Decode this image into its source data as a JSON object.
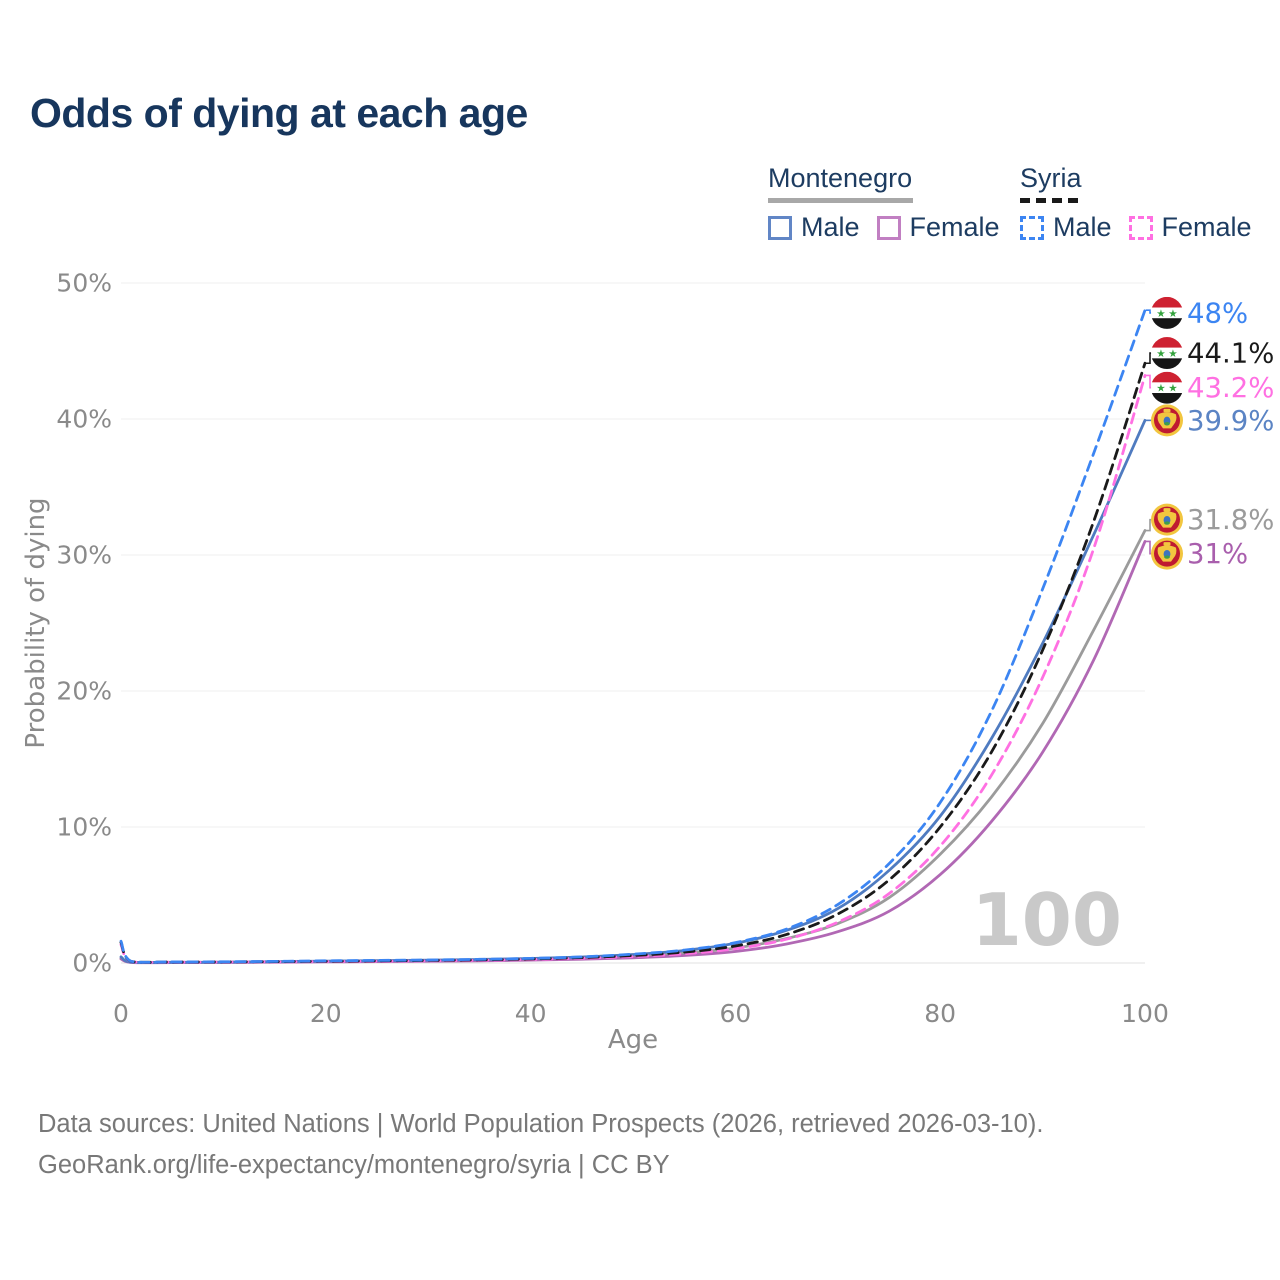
{
  "title": {
    "text": "Odds of dying at each age",
    "color": "#17365d"
  },
  "legend": {
    "position": "top-right",
    "groups": [
      {
        "name": "Montenegro",
        "underline_style": "solid",
        "underline_color": "#a8a8a8",
        "items": [
          {
            "label": "Male",
            "color": "#4f7bc0",
            "dashed": false
          },
          {
            "label": "Female",
            "color": "#b168b4",
            "dashed": false
          }
        ]
      },
      {
        "name": "Syria",
        "underline_style": "dashed",
        "underline_color": "#1a1a1a",
        "items": [
          {
            "label": "Male",
            "color": "#3c85f2",
            "dashed": true
          },
          {
            "label": "Female",
            "color": "#ff70e2",
            "dashed": true
          }
        ]
      }
    ]
  },
  "chart_data": {
    "type": "line",
    "title": "Odds of dying at each age",
    "xlabel": "Age",
    "ylabel": "Probability of dying",
    "xlim": [
      0,
      100
    ],
    "ylim": [
      0,
      50
    ],
    "x_ticks": [
      0,
      20,
      40,
      60,
      80,
      100
    ],
    "y_tick_labels": [
      "0%",
      "10%",
      "20%",
      "30%",
      "40%",
      "50%"
    ],
    "grid": "horizontal",
    "grid_color": "#efefef",
    "axis_text_color": "#8a8a8a",
    "legend_position": "top-right",
    "hover_age_label": "100",
    "x": [
      0,
      1,
      5,
      10,
      15,
      20,
      25,
      30,
      35,
      40,
      45,
      50,
      55,
      60,
      65,
      70,
      75,
      80,
      85,
      90,
      95,
      100
    ],
    "series": [
      {
        "id": "montenegro-total",
        "name": "Montenegro (both sexes)",
        "country": "Montenegro",
        "sex": "both",
        "color": "#9b9b9b",
        "dashed": false,
        "flag": "montenegro",
        "end_label": "31.8%",
        "label_color": "#9b9b9b",
        "label_pct": 32.6,
        "values": [
          0.35,
          0.05,
          0.04,
          0.05,
          0.08,
          0.11,
          0.14,
          0.17,
          0.21,
          0.27,
          0.36,
          0.5,
          0.72,
          1.1,
          1.8,
          2.9,
          4.8,
          8.0,
          12.2,
          17.6,
          24.5,
          31.8
        ]
      },
      {
        "id": "montenegro-female",
        "name": "Montenegro Female",
        "country": "Montenegro",
        "sex": "female",
        "color": "#b168b4",
        "dashed": false,
        "flag": "montenegro",
        "end_label": "31%",
        "label_color": "#a95fad",
        "label_pct": 30.1,
        "values": [
          0.3,
          0.04,
          0.03,
          0.04,
          0.06,
          0.08,
          0.1,
          0.13,
          0.16,
          0.21,
          0.28,
          0.38,
          0.55,
          0.85,
          1.4,
          2.3,
          3.8,
          6.5,
          10.4,
          15.5,
          22.3,
          31.0
        ]
      },
      {
        "id": "montenegro-male",
        "name": "Montenegro Male",
        "country": "Montenegro",
        "sex": "male",
        "color": "#4f7bc0",
        "dashed": false,
        "flag": "montenegro",
        "end_label": "39.9%",
        "label_color": "#5b84c4",
        "label_pct": 39.9,
        "values": [
          0.45,
          0.06,
          0.05,
          0.06,
          0.1,
          0.14,
          0.17,
          0.21,
          0.26,
          0.33,
          0.44,
          0.62,
          0.92,
          1.45,
          2.4,
          4.0,
          6.8,
          10.8,
          16.5,
          23.5,
          31.5,
          39.9
        ]
      },
      {
        "id": "syria-female",
        "name": "Syria Female",
        "country": "Syria",
        "sex": "female",
        "color": "#ff70e2",
        "dashed": true,
        "flag": "syria",
        "end_label": "43.2%",
        "label_color": "#ff70e2",
        "label_pct": 42.3,
        "values": [
          1.35,
          0.1,
          0.06,
          0.07,
          0.09,
          0.11,
          0.13,
          0.16,
          0.2,
          0.26,
          0.35,
          0.47,
          0.68,
          1.05,
          1.75,
          3.0,
          5.1,
          8.6,
          13.8,
          21.0,
          30.5,
          43.2
        ]
      },
      {
        "id": "syria-total",
        "name": "Syria (both sexes)",
        "country": "Syria",
        "sex": "both",
        "color": "#1a1a1a",
        "dashed": true,
        "flag": "syria",
        "end_label": "44.1%",
        "label_color": "#1a1a1a",
        "label_pct": 44.85,
        "values": [
          1.5,
          0.11,
          0.07,
          0.08,
          0.1,
          0.13,
          0.16,
          0.19,
          0.23,
          0.3,
          0.4,
          0.55,
          0.8,
          1.25,
          2.1,
          3.6,
          6.1,
          10.0,
          15.5,
          23.0,
          32.5,
          44.1
        ]
      },
      {
        "id": "syria-male",
        "name": "Syria Male",
        "country": "Syria",
        "sex": "male",
        "color": "#3c85f2",
        "dashed": true,
        "flag": "syria",
        "end_label": "48%",
        "label_color": "#3c85f2",
        "label_pct": 47.8,
        "values": [
          1.6,
          0.12,
          0.08,
          0.09,
          0.12,
          0.16,
          0.19,
          0.22,
          0.27,
          0.34,
          0.45,
          0.65,
          0.95,
          1.5,
          2.5,
          4.3,
          7.3,
          11.8,
          18.5,
          27.5,
          37.5,
          48
        ]
      }
    ]
  },
  "footer": {
    "line1": "Data sources: United Nations | World Population Prospects (2026, retrieved 2026-03-10).",
    "line2": "GeoRank.org/life-expectancy/montenegro/syria | CC BY"
  }
}
